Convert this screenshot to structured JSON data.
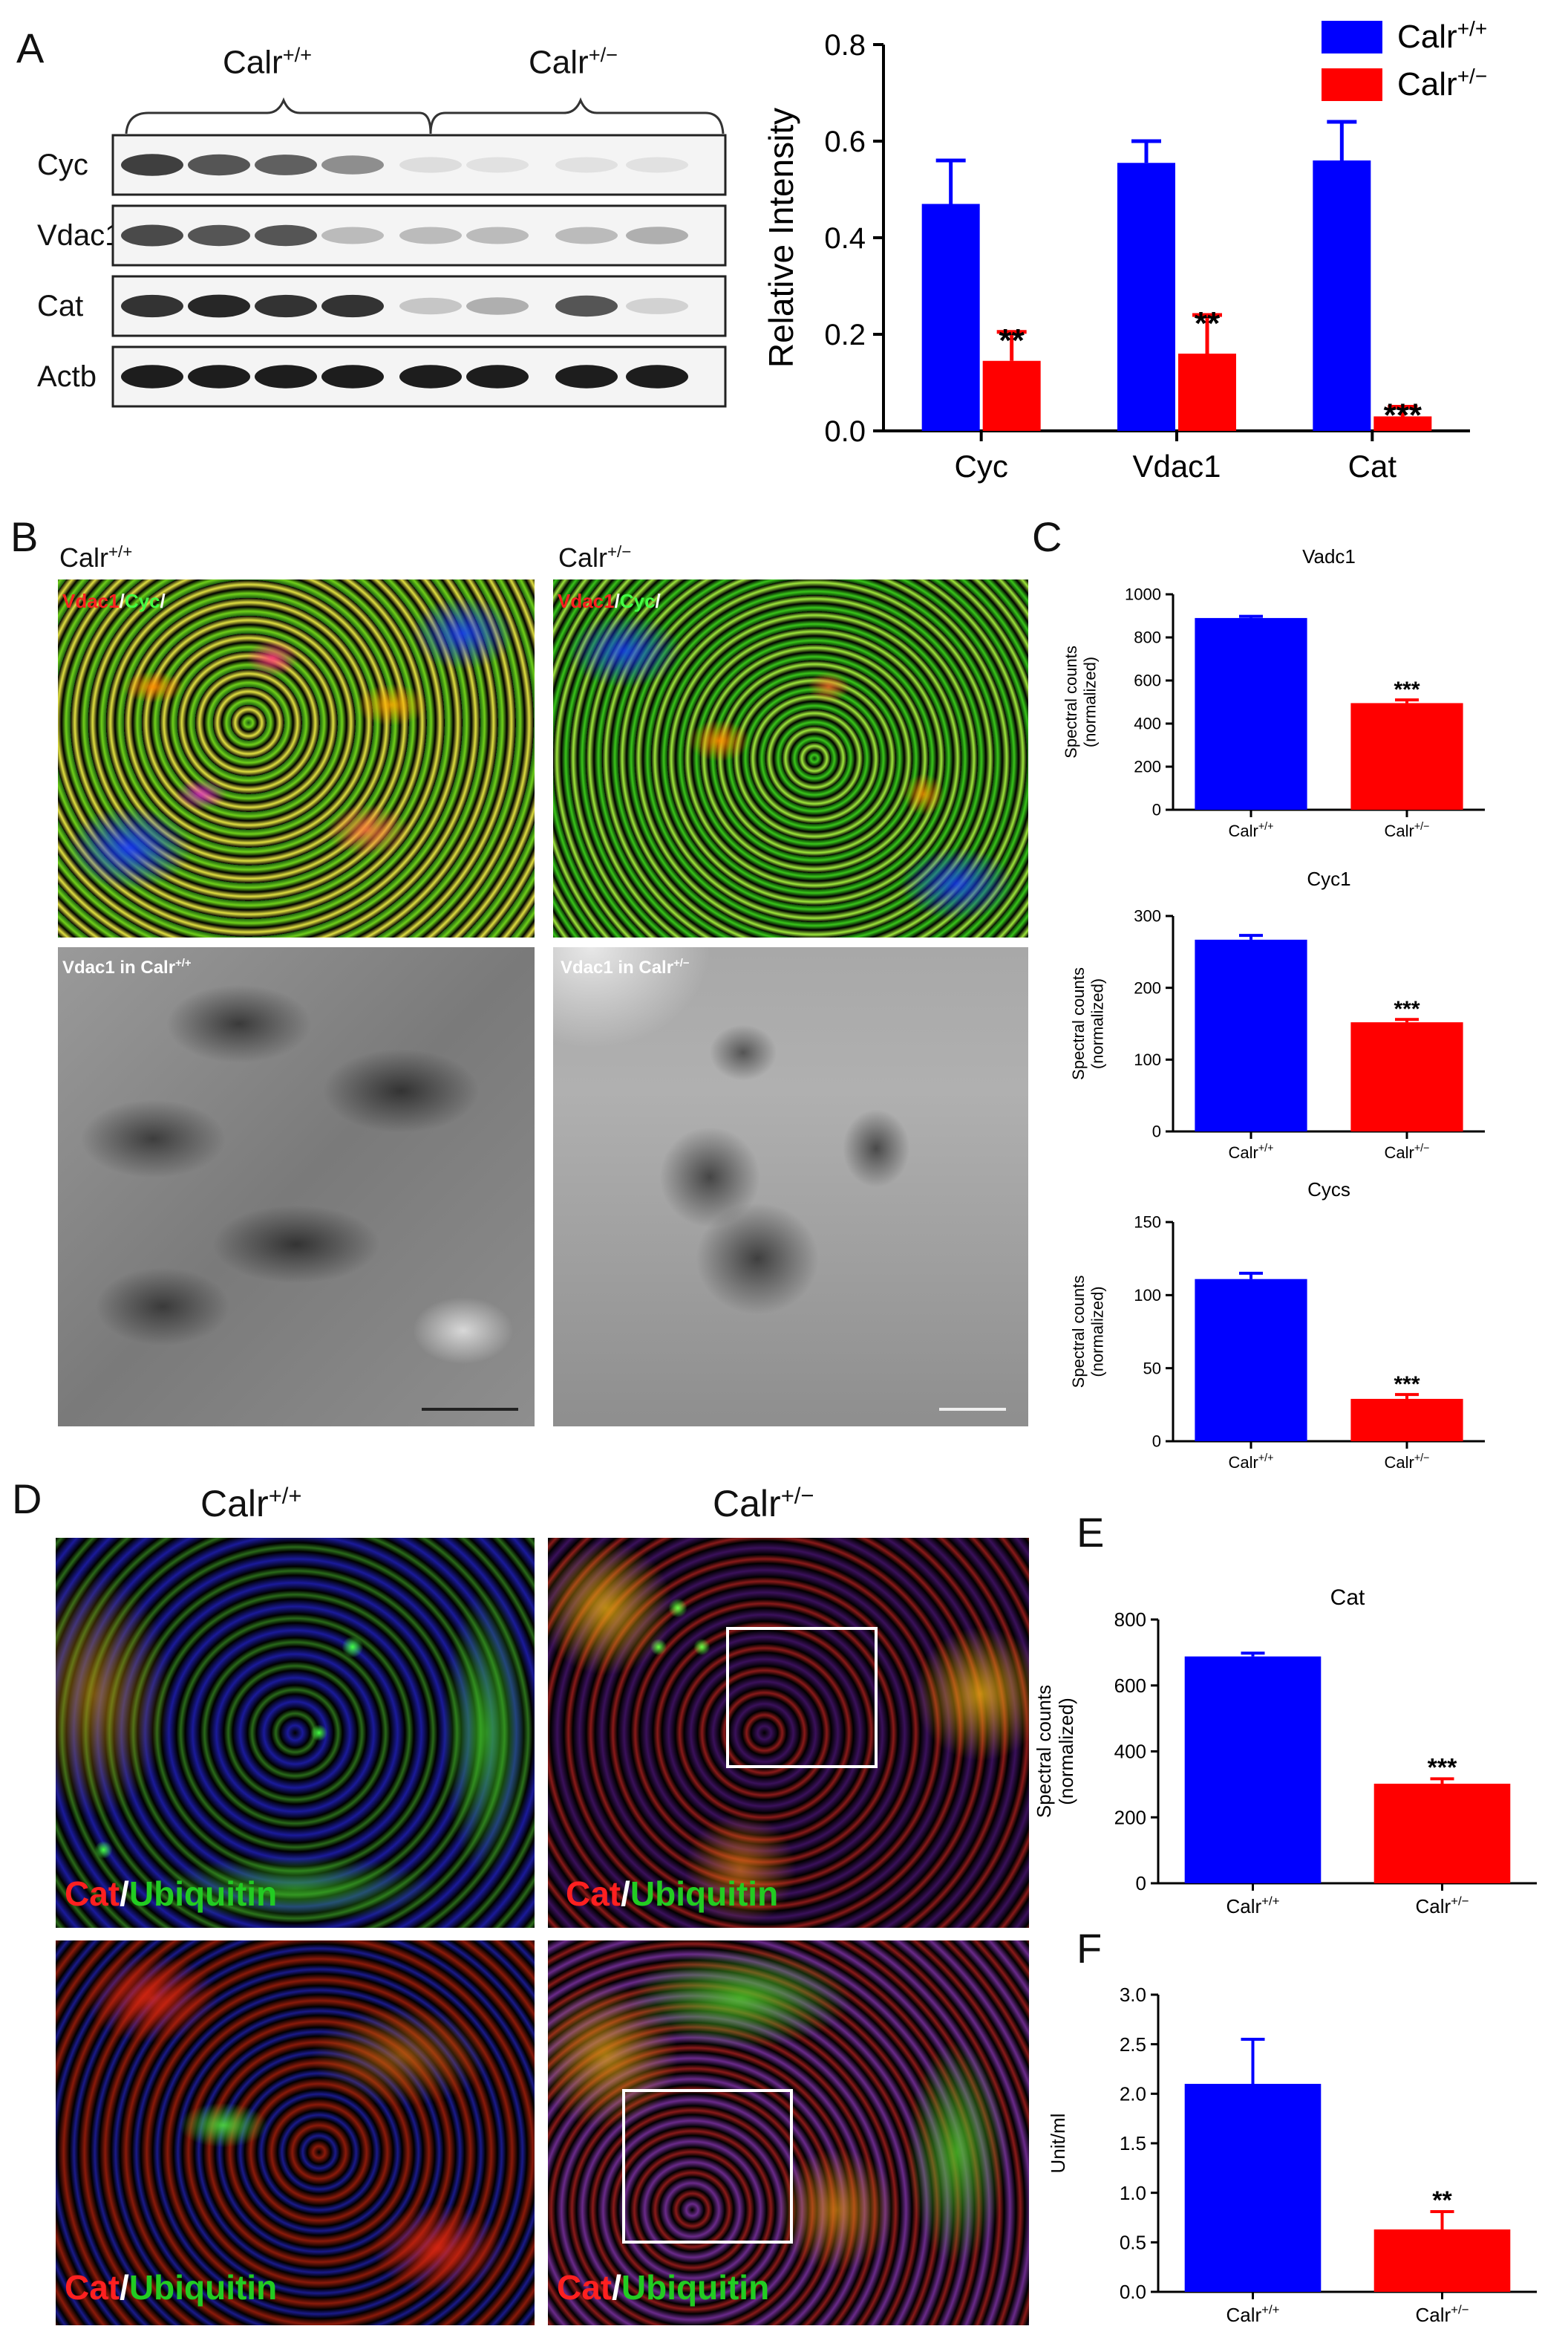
{
  "panels": {
    "A": "A",
    "B": "B",
    "C": "C",
    "D": "D",
    "E": "E",
    "F": "F"
  },
  "genotypes": {
    "wt": "Calr",
    "wt_sup": "+/+",
    "het": "Calr",
    "het_sup": "+/−"
  },
  "western": {
    "rows": [
      "Cyc",
      "Vdac1",
      "Cat",
      "Actb"
    ]
  },
  "panel_b": {
    "if_labels": {
      "vdac1": "Vdac1",
      "slash": "/",
      "cyc": "Cyc",
      "slash2": "/"
    },
    "em_wt": "Vdac1 in Calr",
    "em_het": "Vdac1 in Calr"
  },
  "panel_d": {
    "stain_red": "Cat",
    "stain_slash": "/",
    "stain_green": "Ubiquitin"
  },
  "colors": {
    "wt": "#0000ff",
    "het": "#ff0000"
  },
  "chart_data": [
    {
      "id": "A",
      "type": "bar",
      "categories": [
        "Cyc",
        "Vdac1",
        "Cat"
      ],
      "series": [
        {
          "name": "Calr+/+",
          "values": [
            0.47,
            0.555,
            0.56
          ],
          "errors": [
            0.09,
            0.045,
            0.08
          ]
        },
        {
          "name": "Calr+/−",
          "values": [
            0.145,
            0.16,
            0.03
          ],
          "errors": [
            0.06,
            0.08,
            0.02
          ]
        }
      ],
      "significance": [
        "**",
        "**",
        "***"
      ],
      "ylabel": "Relative Intensity",
      "ylim": [
        0,
        0.8
      ],
      "yticks": [
        "0.0",
        "0.2",
        "0.4",
        "0.6",
        "0.8"
      ],
      "legend": "top-right"
    },
    {
      "id": "C1",
      "type": "bar",
      "title": "Vadc1",
      "categories": [
        "Calr+/+",
        "Calr+/−"
      ],
      "values": [
        890,
        495
      ],
      "errors": [
        8,
        15
      ],
      "significance": "***",
      "ylabel": "Spectral counts (normalized)",
      "ylim": [
        0,
        1000
      ],
      "yticks": [
        "0",
        "200",
        "400",
        "600",
        "800",
        "1000"
      ]
    },
    {
      "id": "C2",
      "type": "bar",
      "title": "Cyc1",
      "categories": [
        "Calr+/+",
        "Calr+/−"
      ],
      "values": [
        267,
        152
      ],
      "errors": [
        6,
        4
      ],
      "significance": "***",
      "ylabel": "Spectral counts (normalized)",
      "ylim": [
        0,
        300
      ],
      "yticks": [
        "0",
        "100",
        "200",
        "300"
      ]
    },
    {
      "id": "C3",
      "type": "bar",
      "title": "Cycs",
      "categories": [
        "Calr+/+",
        "Calr+/−"
      ],
      "values": [
        111,
        29
      ],
      "errors": [
        4,
        3
      ],
      "significance": "***",
      "ylabel": "Spectral counts (normalized)",
      "ylim": [
        0,
        150
      ],
      "yticks": [
        "0",
        "50",
        "100",
        "150"
      ]
    },
    {
      "id": "E",
      "type": "bar",
      "title": "Cat",
      "categories": [
        "Calr+/+",
        "Calr+/−"
      ],
      "values": [
        688,
        302
      ],
      "errors": [
        10,
        15
      ],
      "significance": "***",
      "ylabel": "Spectral counts (normalized)",
      "ylim": [
        0,
        800
      ],
      "yticks": [
        "0",
        "200",
        "400",
        "600",
        "800"
      ]
    },
    {
      "id": "F",
      "type": "bar",
      "categories": [
        "Calr+/+",
        "Calr+/−"
      ],
      "values": [
        2.1,
        0.63
      ],
      "errors": [
        0.45,
        0.18
      ],
      "significance": "**",
      "ylabel": "Unit/ml",
      "ylim": [
        0,
        3.0
      ],
      "yticks": [
        "0.0",
        "0.5",
        "1.0",
        "1.5",
        "2.0",
        "2.5",
        "3.0"
      ]
    }
  ]
}
